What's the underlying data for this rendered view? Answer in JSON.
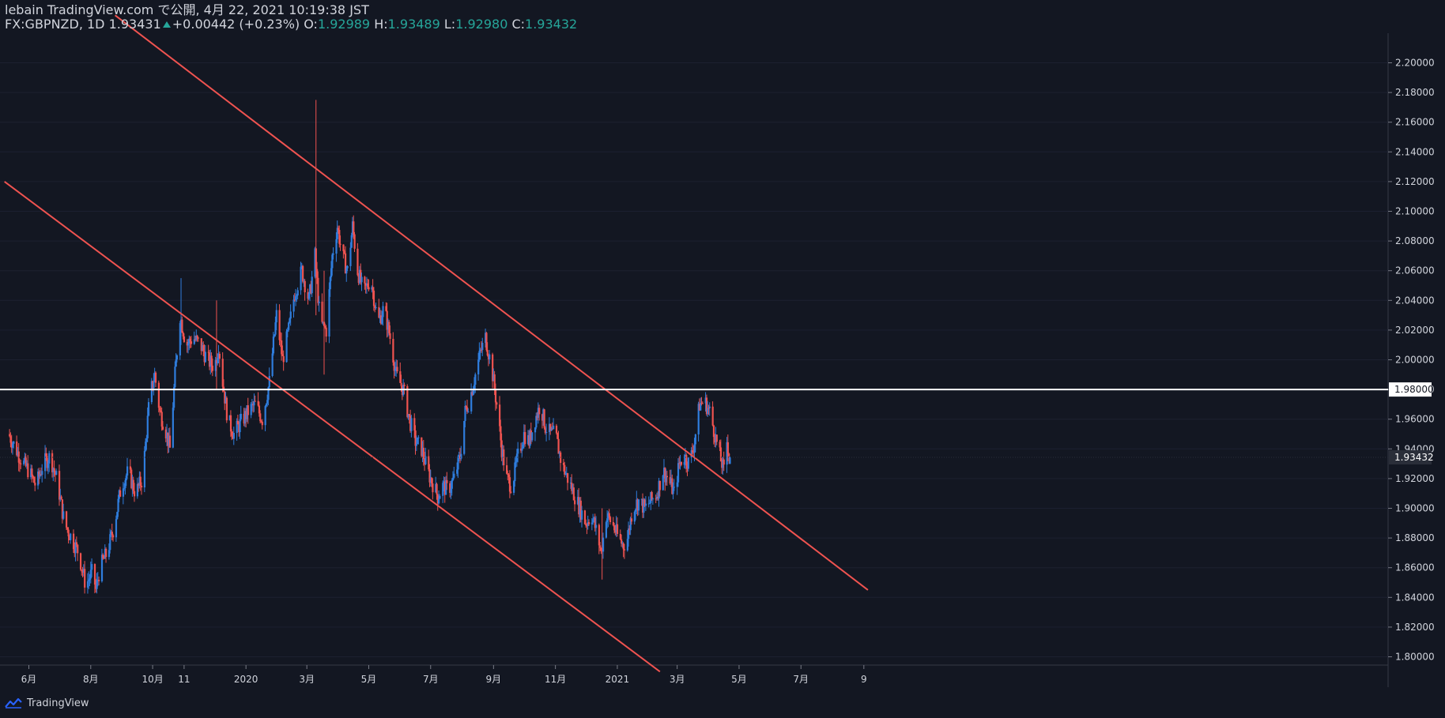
{
  "header": {
    "publish_line": "lebain TradingView.com で公開, 4月 22, 2021 10:19:38 JST",
    "symbol": "FX:GBPNZD, 1D",
    "last": "1.93431",
    "change": "+0.00442 (+0.23%)",
    "o_label": "O:",
    "o_value": "1.92989",
    "h_label": "H:",
    "h_value": "1.93489",
    "l_label": "L:",
    "l_value": "1.92980",
    "c_label": "C:",
    "c_value": "1.93432"
  },
  "footer": {
    "brand": "TradingView",
    "logo_icon": "tradingview-logo-icon"
  },
  "colors": {
    "background": "#131722",
    "up": "#2f7ddd",
    "down": "#ef5350",
    "trendline": "#ef5350",
    "hline": "#ffffff",
    "text": "#d1d4dc",
    "change": "#26a69a"
  },
  "chart_data": {
    "type": "candlestick",
    "symbol": "FX:GBPNZD",
    "interval": "1D",
    "ylim": [
      1.79,
      2.215
    ],
    "y_ticks": [
      "2.20000",
      "2.18000",
      "2.16000",
      "2.14000",
      "2.12000",
      "2.10000",
      "2.08000",
      "2.06000",
      "2.04000",
      "2.02000",
      "2.00000",
      "1.98000",
      "1.96000",
      "1.94000",
      "1.92000",
      "1.90000",
      "1.88000",
      "1.86000",
      "1.84000",
      "1.82000",
      "1.80000"
    ],
    "x_ticks": [
      {
        "label": "6月",
        "date": "2019-06-01"
      },
      {
        "label": "8月",
        "date": "2019-08-01"
      },
      {
        "label": "10月",
        "date": "2019-10-01"
      },
      {
        "label": "11",
        "date": "2019-11-01"
      },
      {
        "label": "2020",
        "date": "2020-01-01"
      },
      {
        "label": "3月",
        "date": "2020-03-01"
      },
      {
        "label": "5月",
        "date": "2020-05-01"
      },
      {
        "label": "7月",
        "date": "2020-07-01"
      },
      {
        "label": "9月",
        "date": "2020-09-01"
      },
      {
        "label": "11月",
        "date": "2020-11-01"
      },
      {
        "label": "2021",
        "date": "2021-01-01"
      },
      {
        "label": "3月",
        "date": "2021-03-01"
      },
      {
        "label": "5月",
        "date": "2021-05-01"
      },
      {
        "label": "7月",
        "date": "2021-07-01"
      },
      {
        "label": "9",
        "date": "2021-09-01"
      }
    ],
    "price_path": [
      {
        "date": "2019-05-12",
        "close": 1.95
      },
      {
        "date": "2019-05-25",
        "close": 1.932
      },
      {
        "date": "2019-06-01",
        "close": 1.925
      },
      {
        "date": "2019-06-08",
        "close": 1.915
      },
      {
        "date": "2019-06-15",
        "close": 1.93
      },
      {
        "date": "2019-06-22",
        "close": 1.935
      },
      {
        "date": "2019-06-29",
        "close": 1.918
      },
      {
        "date": "2019-07-06",
        "close": 1.89
      },
      {
        "date": "2019-07-13",
        "close": 1.88
      },
      {
        "date": "2019-07-20",
        "close": 1.87
      },
      {
        "date": "2019-07-27",
        "close": 1.848
      },
      {
        "date": "2019-08-03",
        "close": 1.858
      },
      {
        "date": "2019-08-06",
        "close": 1.845
      },
      {
        "date": "2019-08-10",
        "close": 1.86
      },
      {
        "date": "2019-08-17",
        "close": 1.87
      },
      {
        "date": "2019-08-24",
        "close": 1.888
      },
      {
        "date": "2019-08-31",
        "close": 1.915
      },
      {
        "date": "2019-09-07",
        "close": 1.925
      },
      {
        "date": "2019-09-14",
        "close": 1.91
      },
      {
        "date": "2019-09-21",
        "close": 1.92
      },
      {
        "date": "2019-09-28",
        "close": 1.975
      },
      {
        "date": "2019-10-03",
        "close": 1.99
      },
      {
        "date": "2019-10-08",
        "close": 1.965
      },
      {
        "date": "2019-10-13",
        "close": 1.955
      },
      {
        "date": "2019-10-18",
        "close": 1.94
      },
      {
        "date": "2019-10-23",
        "close": 1.99
      },
      {
        "date": "2019-10-28",
        "close": 2.03
      },
      {
        "date": "2019-11-03",
        "close": 2.01
      },
      {
        "date": "2019-11-10",
        "close": 2.015
      },
      {
        "date": "2019-11-17",
        "close": 2.01
      },
      {
        "date": "2019-11-24",
        "close": 2.0
      },
      {
        "date": "2019-12-01",
        "close": 1.995
      },
      {
        "date": "2019-12-05",
        "close": 2.01
      },
      {
        "date": "2019-12-09",
        "close": 1.985
      },
      {
        "date": "2019-12-14",
        "close": 1.96
      },
      {
        "date": "2019-12-20",
        "close": 1.95
      },
      {
        "date": "2019-12-27",
        "close": 1.958
      },
      {
        "date": "2020-01-03",
        "close": 1.965
      },
      {
        "date": "2020-01-10",
        "close": 1.97
      },
      {
        "date": "2020-01-17",
        "close": 1.96
      },
      {
        "date": "2020-01-24",
        "close": 1.985
      },
      {
        "date": "2020-01-31",
        "close": 2.03
      },
      {
        "date": "2020-02-06",
        "close": 2.0
      },
      {
        "date": "2020-02-12",
        "close": 2.02
      },
      {
        "date": "2020-02-18",
        "close": 2.045
      },
      {
        "date": "2020-02-25",
        "close": 2.06
      },
      {
        "date": "2020-03-03",
        "close": 2.04
      },
      {
        "date": "2020-03-09",
        "close": 2.07
      },
      {
        "date": "2020-03-14",
        "close": 2.025
      },
      {
        "date": "2020-03-20",
        "close": 2.02
      },
      {
        "date": "2020-03-26",
        "close": 2.07
      },
      {
        "date": "2020-03-31",
        "close": 2.09
      },
      {
        "date": "2020-04-05",
        "close": 2.07
      },
      {
        "date": "2020-04-10",
        "close": 2.06
      },
      {
        "date": "2020-04-15",
        "close": 2.09
      },
      {
        "date": "2020-04-20",
        "close": 2.06
      },
      {
        "date": "2020-04-26",
        "close": 2.045
      },
      {
        "date": "2020-05-03",
        "close": 2.055
      },
      {
        "date": "2020-05-10",
        "close": 2.025
      },
      {
        "date": "2020-05-16",
        "close": 2.035
      },
      {
        "date": "2020-05-22",
        "close": 2.015
      },
      {
        "date": "2020-05-28",
        "close": 1.99
      },
      {
        "date": "2020-06-04",
        "close": 1.98
      },
      {
        "date": "2020-06-10",
        "close": 1.96
      },
      {
        "date": "2020-06-16",
        "close": 1.945
      },
      {
        "date": "2020-06-22",
        "close": 1.94
      },
      {
        "date": "2020-06-28",
        "close": 1.925
      },
      {
        "date": "2020-07-04",
        "close": 1.915
      },
      {
        "date": "2020-07-08",
        "close": 1.908
      },
      {
        "date": "2020-07-13",
        "close": 1.915
      },
      {
        "date": "2020-07-18",
        "close": 1.912
      },
      {
        "date": "2020-07-24",
        "close": 1.92
      },
      {
        "date": "2020-07-30",
        "close": 1.935
      },
      {
        "date": "2020-08-04",
        "close": 1.965
      },
      {
        "date": "2020-08-09",
        "close": 1.975
      },
      {
        "date": "2020-08-14",
        "close": 1.99
      },
      {
        "date": "2020-08-19",
        "close": 2.005
      },
      {
        "date": "2020-08-24",
        "close": 2.015
      },
      {
        "date": "2020-08-30",
        "close": 1.995
      },
      {
        "date": "2020-09-04",
        "close": 1.97
      },
      {
        "date": "2020-09-09",
        "close": 1.94
      },
      {
        "date": "2020-09-14",
        "close": 1.92
      },
      {
        "date": "2020-09-19",
        "close": 1.915
      },
      {
        "date": "2020-09-25",
        "close": 1.935
      },
      {
        "date": "2020-10-01",
        "close": 1.95
      },
      {
        "date": "2020-10-06",
        "close": 1.945
      },
      {
        "date": "2020-10-12",
        "close": 1.96
      },
      {
        "date": "2020-10-17",
        "close": 1.97
      },
      {
        "date": "2020-10-22",
        "close": 1.955
      },
      {
        "date": "2020-10-27",
        "close": 1.95
      },
      {
        "date": "2020-11-01",
        "close": 1.95
      },
      {
        "date": "2020-11-07",
        "close": 1.93
      },
      {
        "date": "2020-11-13",
        "close": 1.92
      },
      {
        "date": "2020-11-19",
        "close": 1.91
      },
      {
        "date": "2020-11-25",
        "close": 1.9
      },
      {
        "date": "2020-12-01",
        "close": 1.89
      },
      {
        "date": "2020-12-07",
        "close": 1.895
      },
      {
        "date": "2020-12-13",
        "close": 1.88
      },
      {
        "date": "2020-12-16",
        "close": 1.87
      },
      {
        "date": "2020-12-21",
        "close": 1.895
      },
      {
        "date": "2020-12-27",
        "close": 1.89
      },
      {
        "date": "2021-01-02",
        "close": 1.88
      },
      {
        "date": "2021-01-07",
        "close": 1.875
      },
      {
        "date": "2021-01-11",
        "close": 1.88
      },
      {
        "date": "2021-01-16",
        "close": 1.9
      },
      {
        "date": "2021-01-22",
        "close": 1.905
      },
      {
        "date": "2021-01-28",
        "close": 1.9
      },
      {
        "date": "2021-02-03",
        "close": 1.905
      },
      {
        "date": "2021-02-09",
        "close": 1.91
      },
      {
        "date": "2021-02-15",
        "close": 1.925
      },
      {
        "date": "2021-02-20",
        "close": 1.92
      },
      {
        "date": "2021-02-26",
        "close": 1.91
      },
      {
        "date": "2021-03-03",
        "close": 1.93
      },
      {
        "date": "2021-03-08",
        "close": 1.935
      },
      {
        "date": "2021-03-13",
        "close": 1.93
      },
      {
        "date": "2021-03-18",
        "close": 1.945
      },
      {
        "date": "2021-03-23",
        "close": 1.97
      },
      {
        "date": "2021-03-28",
        "close": 1.972
      },
      {
        "date": "2021-04-02",
        "close": 1.965
      },
      {
        "date": "2021-04-07",
        "close": 1.95
      },
      {
        "date": "2021-04-12",
        "close": 1.935
      },
      {
        "date": "2021-04-16",
        "close": 1.925
      },
      {
        "date": "2021-04-19",
        "close": 1.945
      },
      {
        "date": "2021-04-22",
        "close": 1.934
      }
    ],
    "spikes": [
      {
        "date": "2020-03-10",
        "high": 2.175,
        "low": 2.03
      },
      {
        "date": "2019-10-29",
        "high": 2.055,
        "low": 2.01
      },
      {
        "date": "2019-12-03",
        "high": 2.04,
        "low": 1.98
      },
      {
        "date": "2020-03-18",
        "high": 2.06,
        "low": 1.99
      },
      {
        "date": "2020-12-17",
        "high": 1.9,
        "low": 1.852
      }
    ],
    "horizontal_lines": [
      {
        "price": 1.98,
        "label": "1.98000",
        "color": "#ffffff"
      }
    ],
    "trendlines": [
      {
        "name": "upper-channel",
        "x1": "2019-08-25",
        "y1": 2.232,
        "x2": "2021-09-05",
        "y2": 1.845
      },
      {
        "name": "lower-channel",
        "x1": "2019-05-08",
        "y1": 2.12,
        "x2": "2021-02-12",
        "y2": 1.79
      }
    ],
    "last_price": {
      "value": 1.93432,
      "label": "1.93432"
    }
  }
}
